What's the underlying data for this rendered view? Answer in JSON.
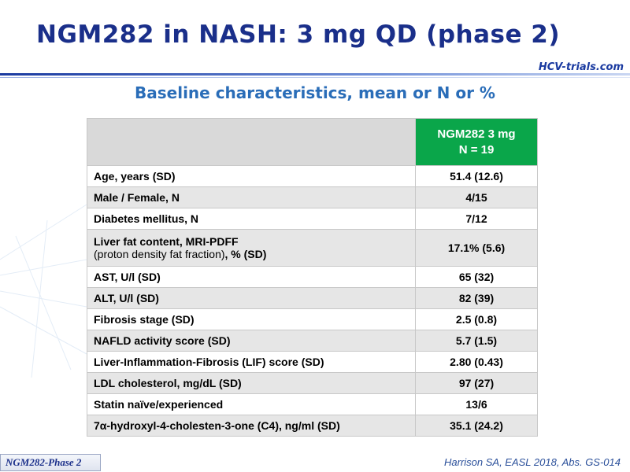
{
  "header": {
    "title": "NGM282 in NASH: 3 mg QD (phase 2)",
    "logo": "HCV-trials.com"
  },
  "table": {
    "title": "Baseline characteristics, mean or N or %",
    "header": [
      "NGM282 3 mg",
      "N = 19"
    ],
    "rows": [
      {
        "label": "Age, years (SD)",
        "value": "51.4 (12.6)"
      },
      {
        "label": "Male / Female, N",
        "value": "4/15"
      },
      {
        "label": "Diabetes mellitus, N",
        "value": "7/12"
      },
      {
        "label": "Liver fat content, MRI-PDFF",
        "sublabel": "(proton density fat fraction)",
        "sublabel_bold": ", % (SD)",
        "value": "17.1% (5.6)"
      },
      {
        "label": "AST, U/l (SD)",
        "value": "65 (32)"
      },
      {
        "label": "ALT, U/l (SD)",
        "value": "82 (39)"
      },
      {
        "label": "Fibrosis stage (SD)",
        "value": "2.5 (0.8)"
      },
      {
        "label": "NAFLD activity score (SD)",
        "value": "5.7 (1.5)"
      },
      {
        "label": "Liver-Inflammation-Fibrosis (LIF) score (SD)",
        "value": "2.80 (0.43)"
      },
      {
        "label": "LDL cholesterol, mg/dL (SD)",
        "value": "97 (27)"
      },
      {
        "label": "Statin naïve/experienced",
        "value": "13/6"
      },
      {
        "label": "7α-hydroxyl-4-cholesten-3-one (C4), ng/ml (SD)",
        "value": "35.1 (24.2)"
      }
    ]
  },
  "footer": {
    "tag": "NGM282-Phase 2",
    "citation": "Harrison SA, EASL 2018, Abs. GS-014"
  }
}
